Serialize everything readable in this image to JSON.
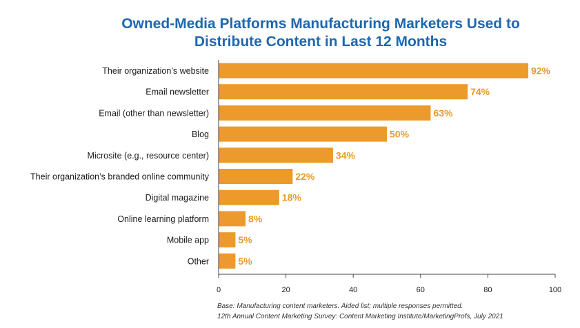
{
  "chart_data": {
    "type": "bar",
    "orientation": "horizontal",
    "title_lines": [
      "Owned-Media Platforms Manufacturing Marketers Used to",
      "Distribute Content in Last 12 Months"
    ],
    "categories": [
      "Their organization’s website",
      "Email newsletter",
      "Email (other than newsletter)",
      "Blog",
      "Microsite (e.g., resource center)",
      "Their organization’s branded online community",
      "Digital magazine",
      "Online learning platform",
      "Mobile app",
      "Other"
    ],
    "values": [
      92,
      74,
      63,
      50,
      34,
      22,
      18,
      8,
      5,
      5
    ],
    "value_labels": [
      "92%",
      "74%",
      "63%",
      "50%",
      "34%",
      "22%",
      "18%",
      "8%",
      "5%",
      "5%"
    ],
    "xlim": [
      0,
      100
    ],
    "xticks": [
      0,
      20,
      40,
      60,
      80,
      100
    ],
    "bar_color": "#ec9a2b",
    "label_color": "#ec9a2b",
    "title_color": "#1f67ae",
    "grid": false,
    "legend": "none"
  },
  "footnote": {
    "line1": "Base: Manufacturing content marketers. Aided list; multiple responses permitted.",
    "line2": "12th Annual Content Marketing Survey: Content Marketing Institute/MarketingProfs, July 2021"
  }
}
